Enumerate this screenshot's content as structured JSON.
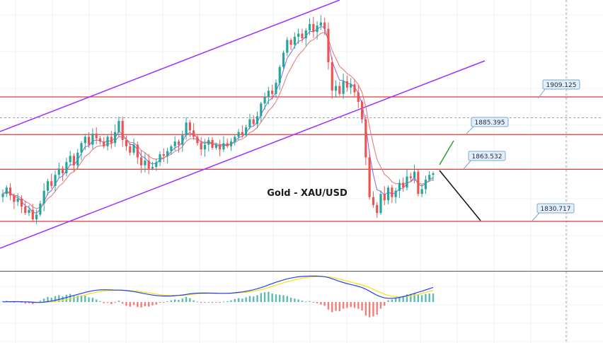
{
  "chart_data": {
    "type": "candlestick",
    "title": "Gold - XAU/USD",
    "ylim": [
      1805,
      1960
    ],
    "horizontal_levels": [
      {
        "value": 1909.125,
        "label": "1909.125",
        "color": "#e53935"
      },
      {
        "value": 1885.395,
        "label": "1885.395",
        "color": "#e53935"
      },
      {
        "value": 1863.532,
        "label": "1863.532",
        "color": "#e53935"
      },
      {
        "value": 1830.717,
        "label": "1830.717",
        "color": "#e53935"
      }
    ],
    "dotted_level": 1896,
    "colors": {
      "up": "#26a69a",
      "down": "#ef5350",
      "channel": "#9b30ff",
      "level": "#e53935",
      "ema_fast": "#7b68ee",
      "ema_slow": "#e57373",
      "macd": "#1e3fff",
      "signal": "#ffe000",
      "proj_up": "#2e9e2e",
      "proj_down": "#111111"
    },
    "price_closes": [
      1848,
      1852,
      1847,
      1843,
      1845,
      1840,
      1836,
      1838,
      1832,
      1835,
      1842,
      1850,
      1856,
      1853,
      1860,
      1864,
      1861,
      1868,
      1872,
      1866,
      1874,
      1880,
      1884,
      1879,
      1886,
      1883,
      1881,
      1878,
      1884,
      1880,
      1887,
      1894,
      1882,
      1878,
      1874,
      1879,
      1871,
      1866,
      1869,
      1864,
      1865,
      1868,
      1873,
      1872,
      1875,
      1878,
      1881,
      1879,
      1885,
      1893,
      1888,
      1884,
      1880,
      1876,
      1879,
      1882,
      1877,
      1879,
      1876,
      1880,
      1878,
      1881,
      1884,
      1887,
      1885,
      1890,
      1895,
      1892,
      1897,
      1905,
      1909,
      1913,
      1911,
      1918,
      1928,
      1937,
      1945,
      1942,
      1947,
      1949,
      1946,
      1951,
      1955,
      1950,
      1954,
      1956,
      1952,
      1931,
      1913,
      1916,
      1911,
      1919,
      1915,
      1917,
      1912,
      1906,
      1895,
      1871,
      1846,
      1841,
      1836,
      1848,
      1844,
      1852,
      1846,
      1850,
      1855,
      1852,
      1859,
      1858,
      1862,
      1848,
      1851,
      1857,
      1860,
      1861
    ],
    "macd_hist": [
      0.2,
      0.3,
      0.1,
      -0.1,
      0.1,
      -0.2,
      -0.4,
      -0.3,
      -0.5,
      -0.2,
      0.3,
      0.8,
      1.2,
      1.0,
      1.4,
      1.6,
      1.3,
      1.7,
      1.9,
      1.4,
      1.5,
      1.6,
      1.5,
      1.1,
      1.0,
      0.6,
      0.2,
      -0.3,
      -0.2,
      -0.5,
      -0.2,
      0.3,
      -0.4,
      -0.9,
      -1.1,
      -0.7,
      -1.2,
      -1.3,
      -1.0,
      -1.1,
      -0.8,
      -0.6,
      -0.2,
      -0.1,
      0.2,
      0.4,
      0.6,
      0.5,
      0.8,
      1.2,
      0.9,
      0.4,
      0.1,
      -0.2,
      -0.1,
      0.0,
      -0.2,
      -0.1,
      -0.2,
      0.1,
      0.2,
      0.4,
      0.7,
      0.9,
      0.8,
      1.1,
      1.4,
      1.3,
      1.6,
      2.1,
      2.3,
      2.4,
      2.0,
      1.8,
      1.7,
      1.6,
      1.4,
      1.0,
      0.8,
      0.6,
      0.3,
      0.1,
      0.2,
      -0.1,
      -0.3,
      -0.6,
      -0.9,
      -1.8,
      -2.4,
      -2.1,
      -2.2,
      -1.6,
      -1.4,
      -1.2,
      -1.4,
      -1.6,
      -2.0,
      -3.2,
      -3.6,
      -3.4,
      -3.0,
      -1.6,
      -0.9,
      0.4,
      0.6,
      0.9,
      1.3,
      1.4,
      1.8,
      1.9,
      2.1,
      1.7,
      1.6,
      1.9,
      2.0,
      2.0
    ]
  }
}
